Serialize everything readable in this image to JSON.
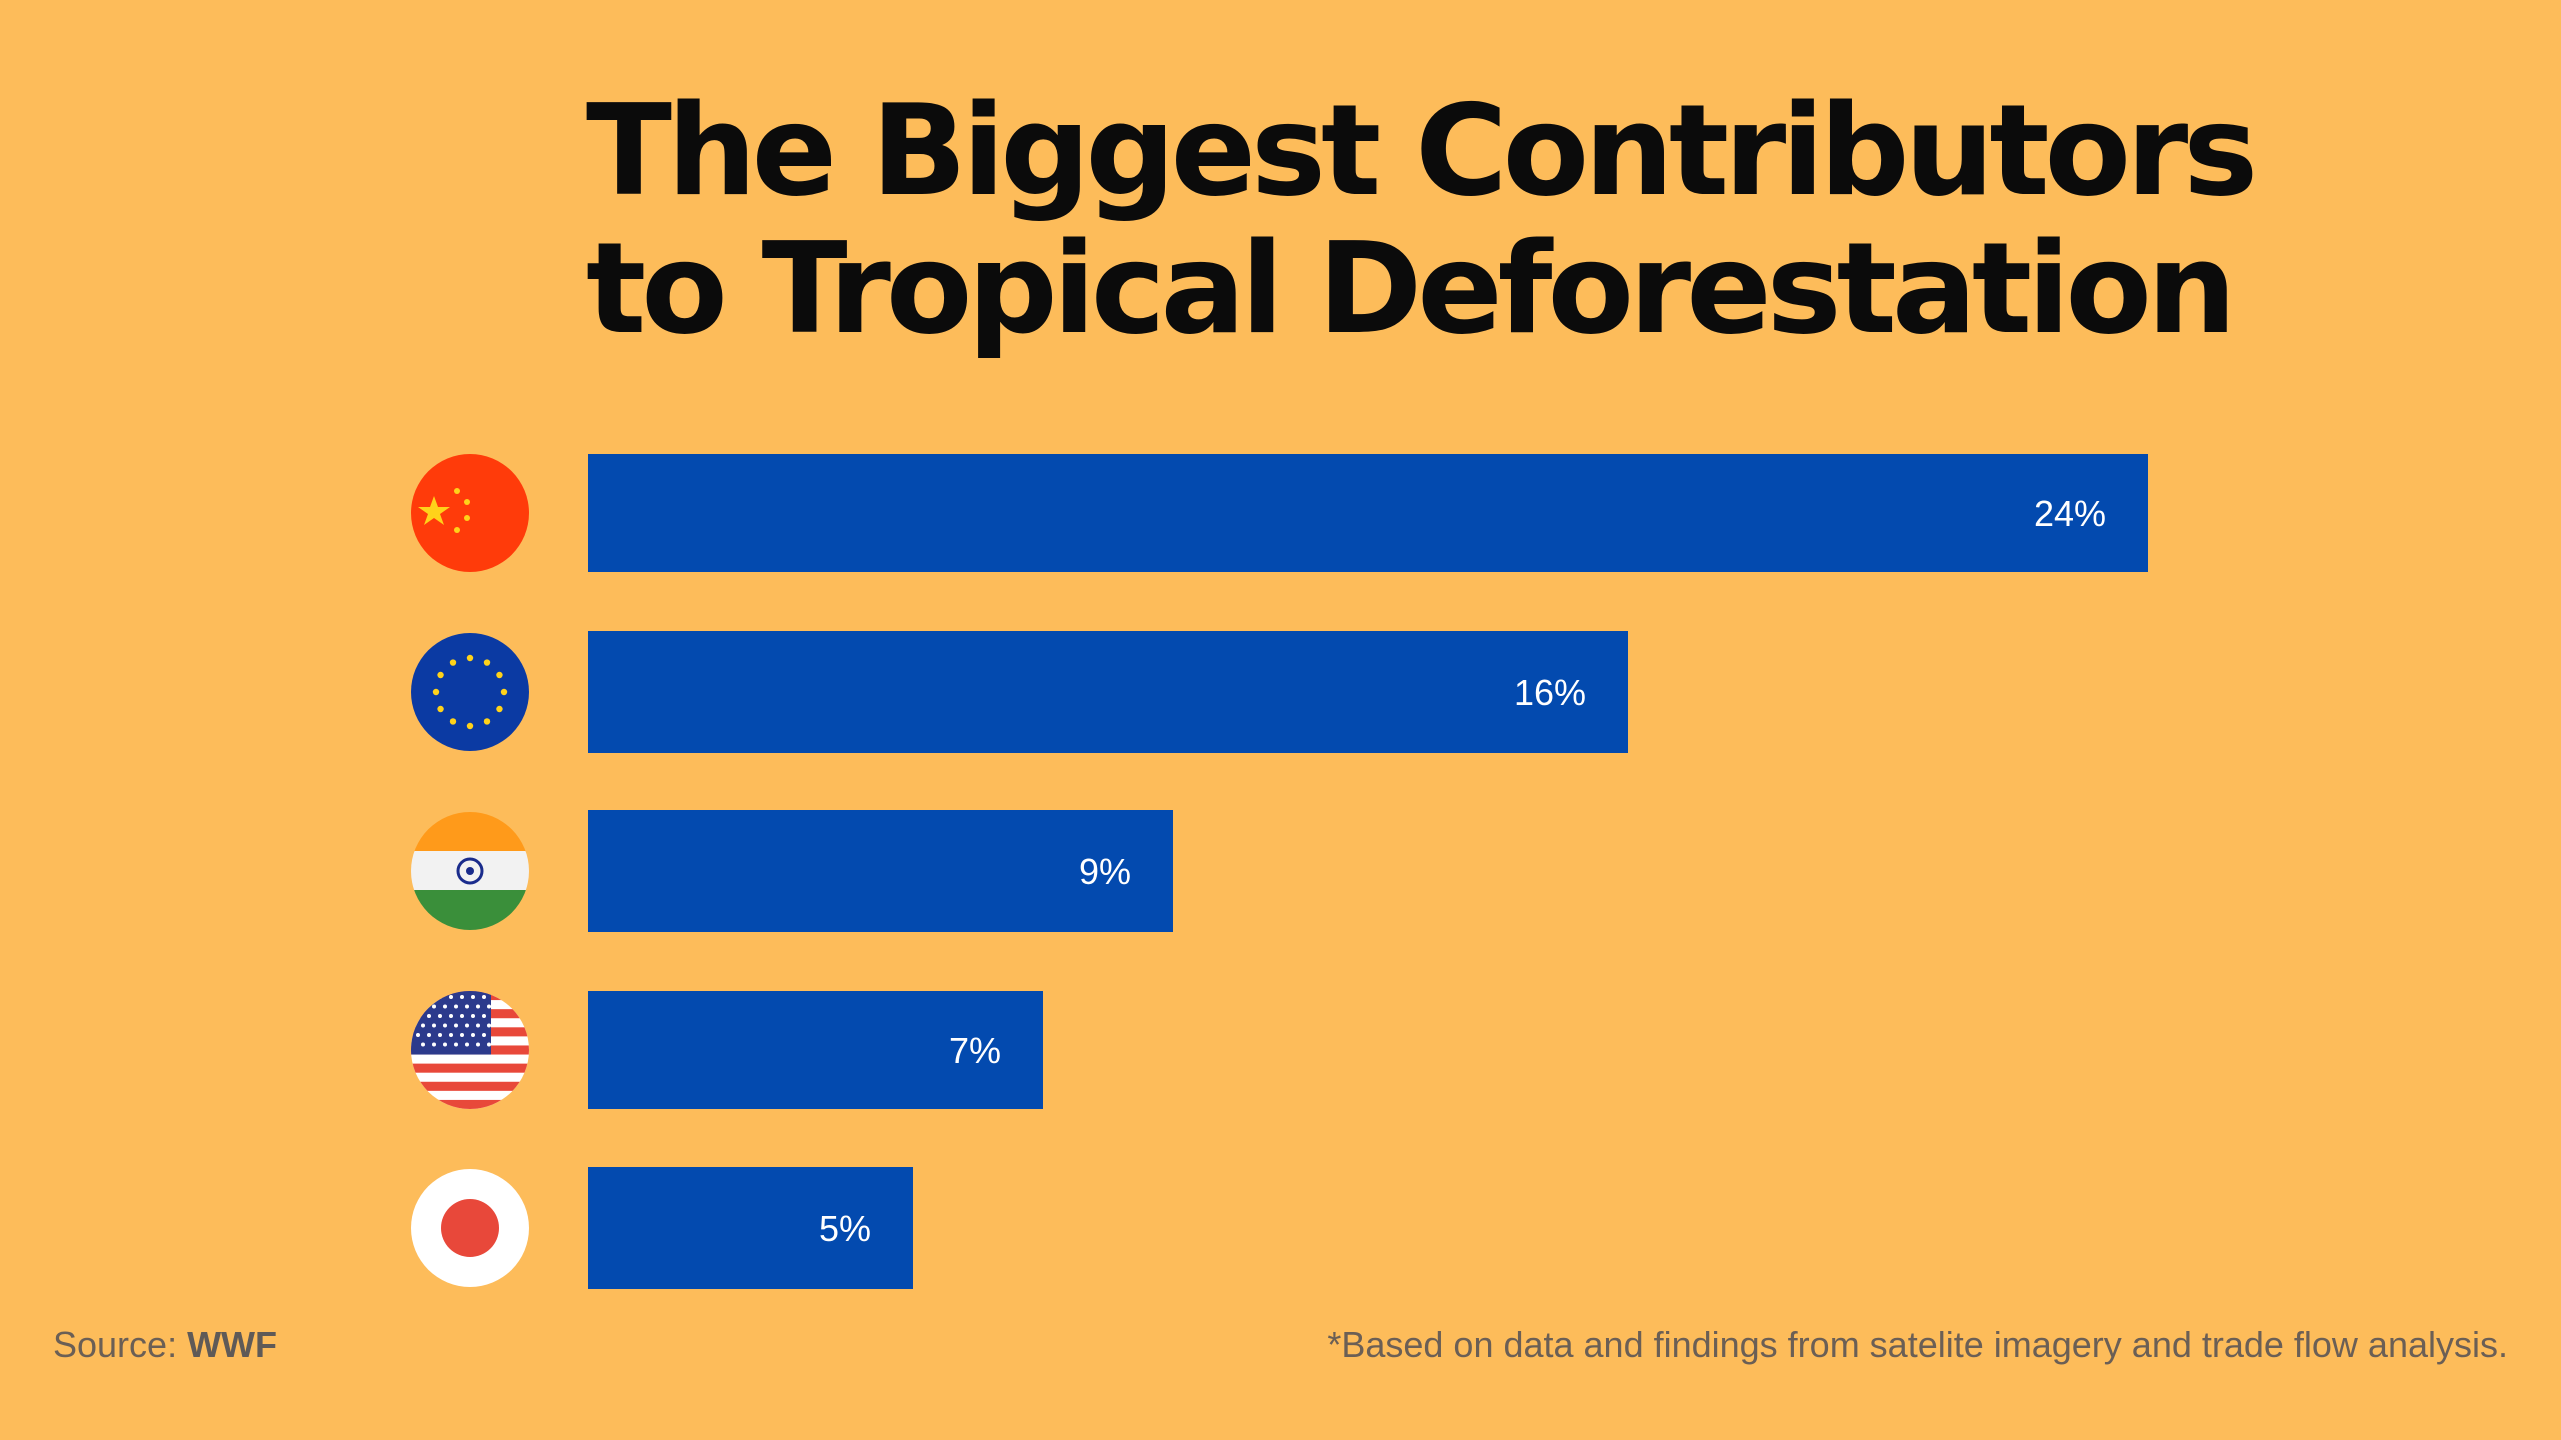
{
  "chart_data": {
    "type": "bar",
    "orientation": "horizontal",
    "title_lines": [
      "The Biggest Contributors",
      "to Tropical Deforestation"
    ],
    "categories": [
      "China",
      "European Union",
      "India",
      "United States",
      "Japan"
    ],
    "category_icons": [
      "china-flag-icon",
      "eu-flag-icon",
      "india-flag-icon",
      "usa-flag-icon",
      "japan-flag-icon"
    ],
    "values": [
      24,
      16,
      9,
      7,
      5
    ],
    "value_labels": [
      "24%",
      "16%",
      "9%",
      "7%",
      "5%"
    ],
    "unit": "%",
    "xlim": [
      0,
      24
    ],
    "grid": false,
    "legend": "none"
  },
  "footer": {
    "source_prefix": "Source: ",
    "source_name": "WWF",
    "note": "*Based on data and findings  from satelite imagery and trade flow analysis."
  },
  "colors": {
    "background": "#FDBC5A",
    "bar": "#034AAF",
    "title": "#0b0b0b",
    "footer_text": "#6b5f55"
  }
}
